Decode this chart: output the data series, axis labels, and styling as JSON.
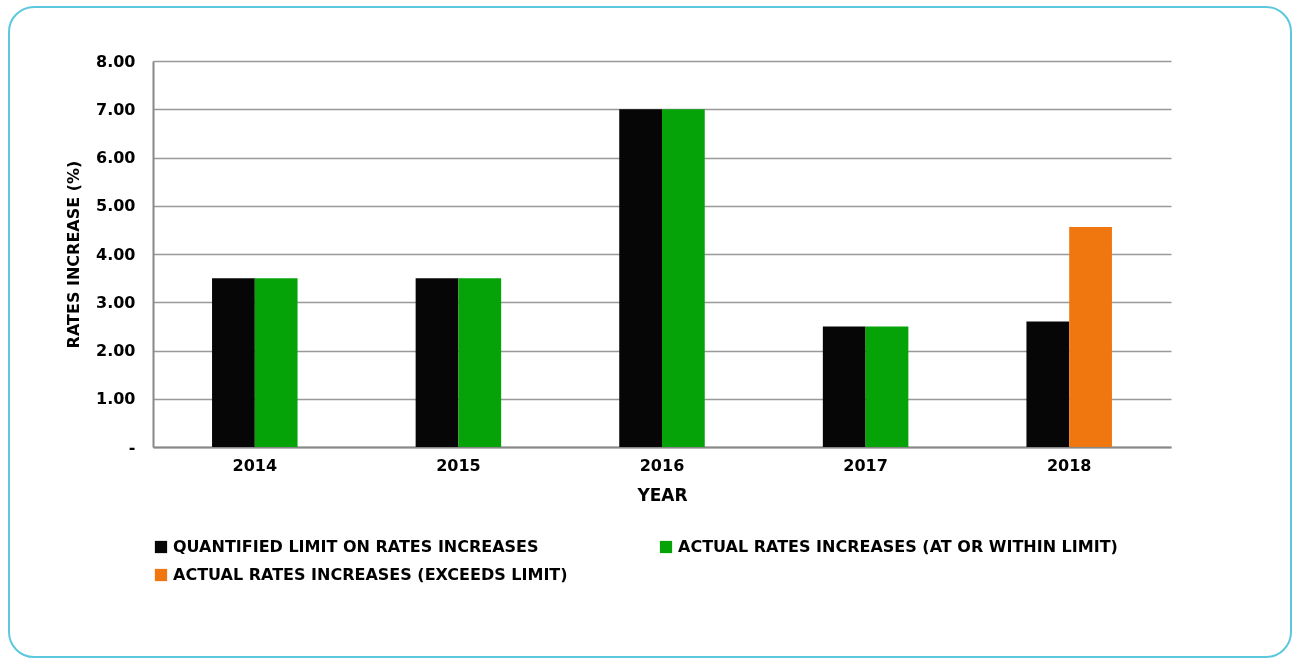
{
  "chart_data": {
    "type": "bar",
    "xlabel": "YEAR",
    "ylabel": "RATES INCREASE (%)",
    "categories": [
      "2014",
      "2015",
      "2016",
      "2017",
      "2018"
    ],
    "series": [
      {
        "name": "QUANTIFIED LIMIT ON RATES INCREASES",
        "color": "#060606",
        "values": [
          3.5,
          3.5,
          7.0,
          2.5,
          2.6
        ]
      },
      {
        "name": "ACTUAL RATES INCREASES (AT OR WITHIN LIMIT)",
        "color": "#05a307",
        "values": [
          3.5,
          3.5,
          7.0,
          2.5,
          null
        ]
      },
      {
        "name": "ACTUAL RATES INCREASES (EXCEEDS LIMIT)",
        "color": "#f07610",
        "values": [
          null,
          null,
          null,
          null,
          4.56
        ]
      }
    ],
    "ylim": [
      0,
      8
    ],
    "yticks": [
      {
        "value": 0,
        "label": "-"
      },
      {
        "value": 1,
        "label": "1.00"
      },
      {
        "value": 2,
        "label": "2.00"
      },
      {
        "value": 3,
        "label": "3.00"
      },
      {
        "value": 4,
        "label": "4.00"
      },
      {
        "value": 5,
        "label": "5.00"
      },
      {
        "value": 6,
        "label": "6.00"
      },
      {
        "value": 7,
        "label": "7.00"
      },
      {
        "value": 8,
        "label": "8.00"
      }
    ],
    "grid": "y",
    "legend": "bottom"
  }
}
